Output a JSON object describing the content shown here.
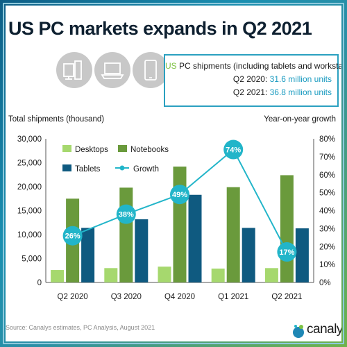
{
  "title": "US PC markets expands in Q2 2021",
  "info": {
    "line1_us": "US",
    "line1_rest": " PC shipments (including tablets and workstations)",
    "line2_label": "Q2 2020: ",
    "line2_value": "31.6 million units",
    "line3_label": "Q2 2021: ",
    "line3_value": "36.8 million units"
  },
  "icons": [
    "desktop-icon",
    "laptop-icon",
    "tablet-icon"
  ],
  "source": "Source: Canalys estimates, PC Analysis, August 2021",
  "logo": "canalys",
  "colors": {
    "desktops": "#a6d86e",
    "notebooks": "#6a9a3c",
    "tablets": "#0f5a80",
    "growth": "#22b5c9"
  },
  "chart_data": {
    "type": "bar",
    "categories": [
      "Q2 2020",
      "Q3 2020",
      "Q4 2020",
      "Q1 2021",
      "Q2 2021"
    ],
    "series": [
      {
        "name": "Desktops",
        "values": [
          2600,
          3000,
          3300,
          2900,
          3000
        ]
      },
      {
        "name": "Notebooks",
        "values": [
          17500,
          19800,
          24200,
          19900,
          22400
        ]
      },
      {
        "name": "Tablets",
        "values": [
          11400,
          13200,
          18300,
          11400,
          11300
        ]
      }
    ],
    "line_series": {
      "name": "Growth",
      "values": [
        26,
        38,
        49,
        74,
        17
      ],
      "labels": [
        "26%",
        "38%",
        "49%",
        "74%",
        "17%"
      ]
    },
    "ylabel_left": "Total shipments (thousand)",
    "ylabel_right": "Year-on-year growth",
    "ylim_left": [
      0,
      30000
    ],
    "ylim_right": [
      0,
      80
    ],
    "yticks_left": [
      "0",
      "5,000",
      "10,000",
      "15,000",
      "20,000",
      "25,000",
      "30,000"
    ],
    "yticks_right": [
      "0%",
      "10%",
      "20%",
      "30%",
      "40%",
      "50%",
      "60%",
      "70%",
      "80%"
    ],
    "legend": [
      "Desktops",
      "Notebooks",
      "Tablets",
      "Growth"
    ],
    "legend_position": "top-left",
    "grid": false
  }
}
